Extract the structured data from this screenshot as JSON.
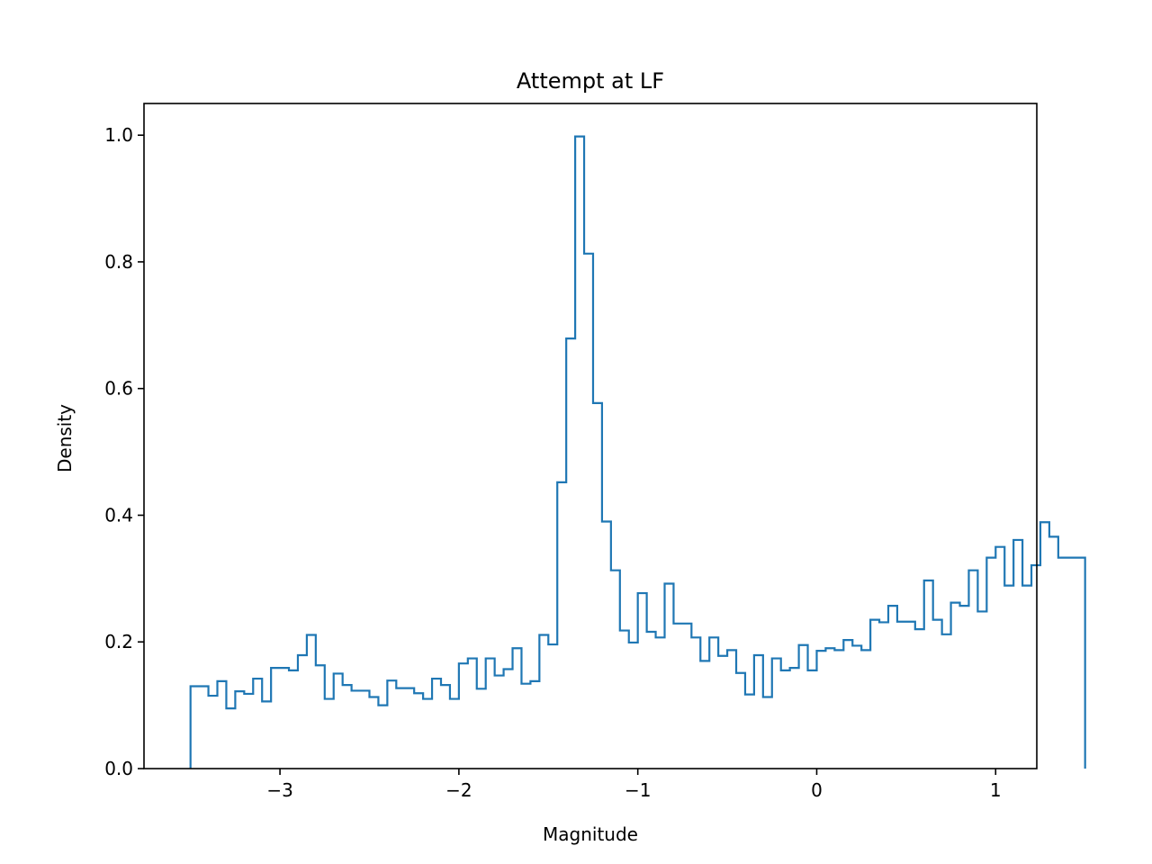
{
  "chart_data": {
    "type": "histogram",
    "title": "Attempt at LF",
    "xlabel": "Magnitude",
    "ylabel": "Density",
    "xlim": [
      -3.76,
      1.23
    ],
    "ylim": [
      0,
      1.05
    ],
    "xticks": [
      -3,
      -2,
      -1,
      0,
      1
    ],
    "xtick_labels": [
      "−3",
      "−2",
      "−1",
      "0",
      "1"
    ],
    "yticks": [
      0.0,
      0.2,
      0.4,
      0.6,
      0.8,
      1.0
    ],
    "ytick_labels": [
      "0.0",
      "0.2",
      "0.4",
      "0.6",
      "0.8",
      "1.0"
    ],
    "grid": false,
    "series_color": "#1f77b4",
    "histtype": "step",
    "bin_start": -3.5,
    "bin_width": 0.05,
    "values": [
      0.13,
      0.13,
      0.115,
      0.138,
      0.095,
      0.122,
      0.118,
      0.142,
      0.106,
      0.159,
      0.159,
      0.155,
      0.179,
      0.211,
      0.163,
      0.11,
      0.15,
      0.132,
      0.123,
      0.123,
      0.113,
      0.1,
      0.139,
      0.127,
      0.127,
      0.119,
      0.11,
      0.142,
      0.132,
      0.11,
      0.166,
      0.174,
      0.126,
      0.174,
      0.147,
      0.157,
      0.19,
      0.134,
      0.138,
      0.211,
      0.196,
      0.452,
      0.679,
      0.998,
      0.813,
      0.577,
      0.39,
      0.313,
      0.218,
      0.199,
      0.277,
      0.216,
      0.207,
      0.292,
      0.229,
      0.229,
      0.207,
      0.17,
      0.207,
      0.178,
      0.187,
      0.151,
      0.117,
      0.179,
      0.113,
      0.174,
      0.155,
      0.159,
      0.195,
      0.155,
      0.186,
      0.19,
      0.187,
      0.203,
      0.194,
      0.187,
      0.235,
      0.231,
      0.257,
      0.232,
      0.232,
      0.22,
      0.297,
      0.235,
      0.212,
      0.262,
      0.257,
      0.313,
      0.248,
      0.333,
      0.35,
      0.289,
      0.361,
      0.289,
      0.321,
      0.389,
      0.366,
      0.333,
      0.333,
      0.333
    ]
  }
}
